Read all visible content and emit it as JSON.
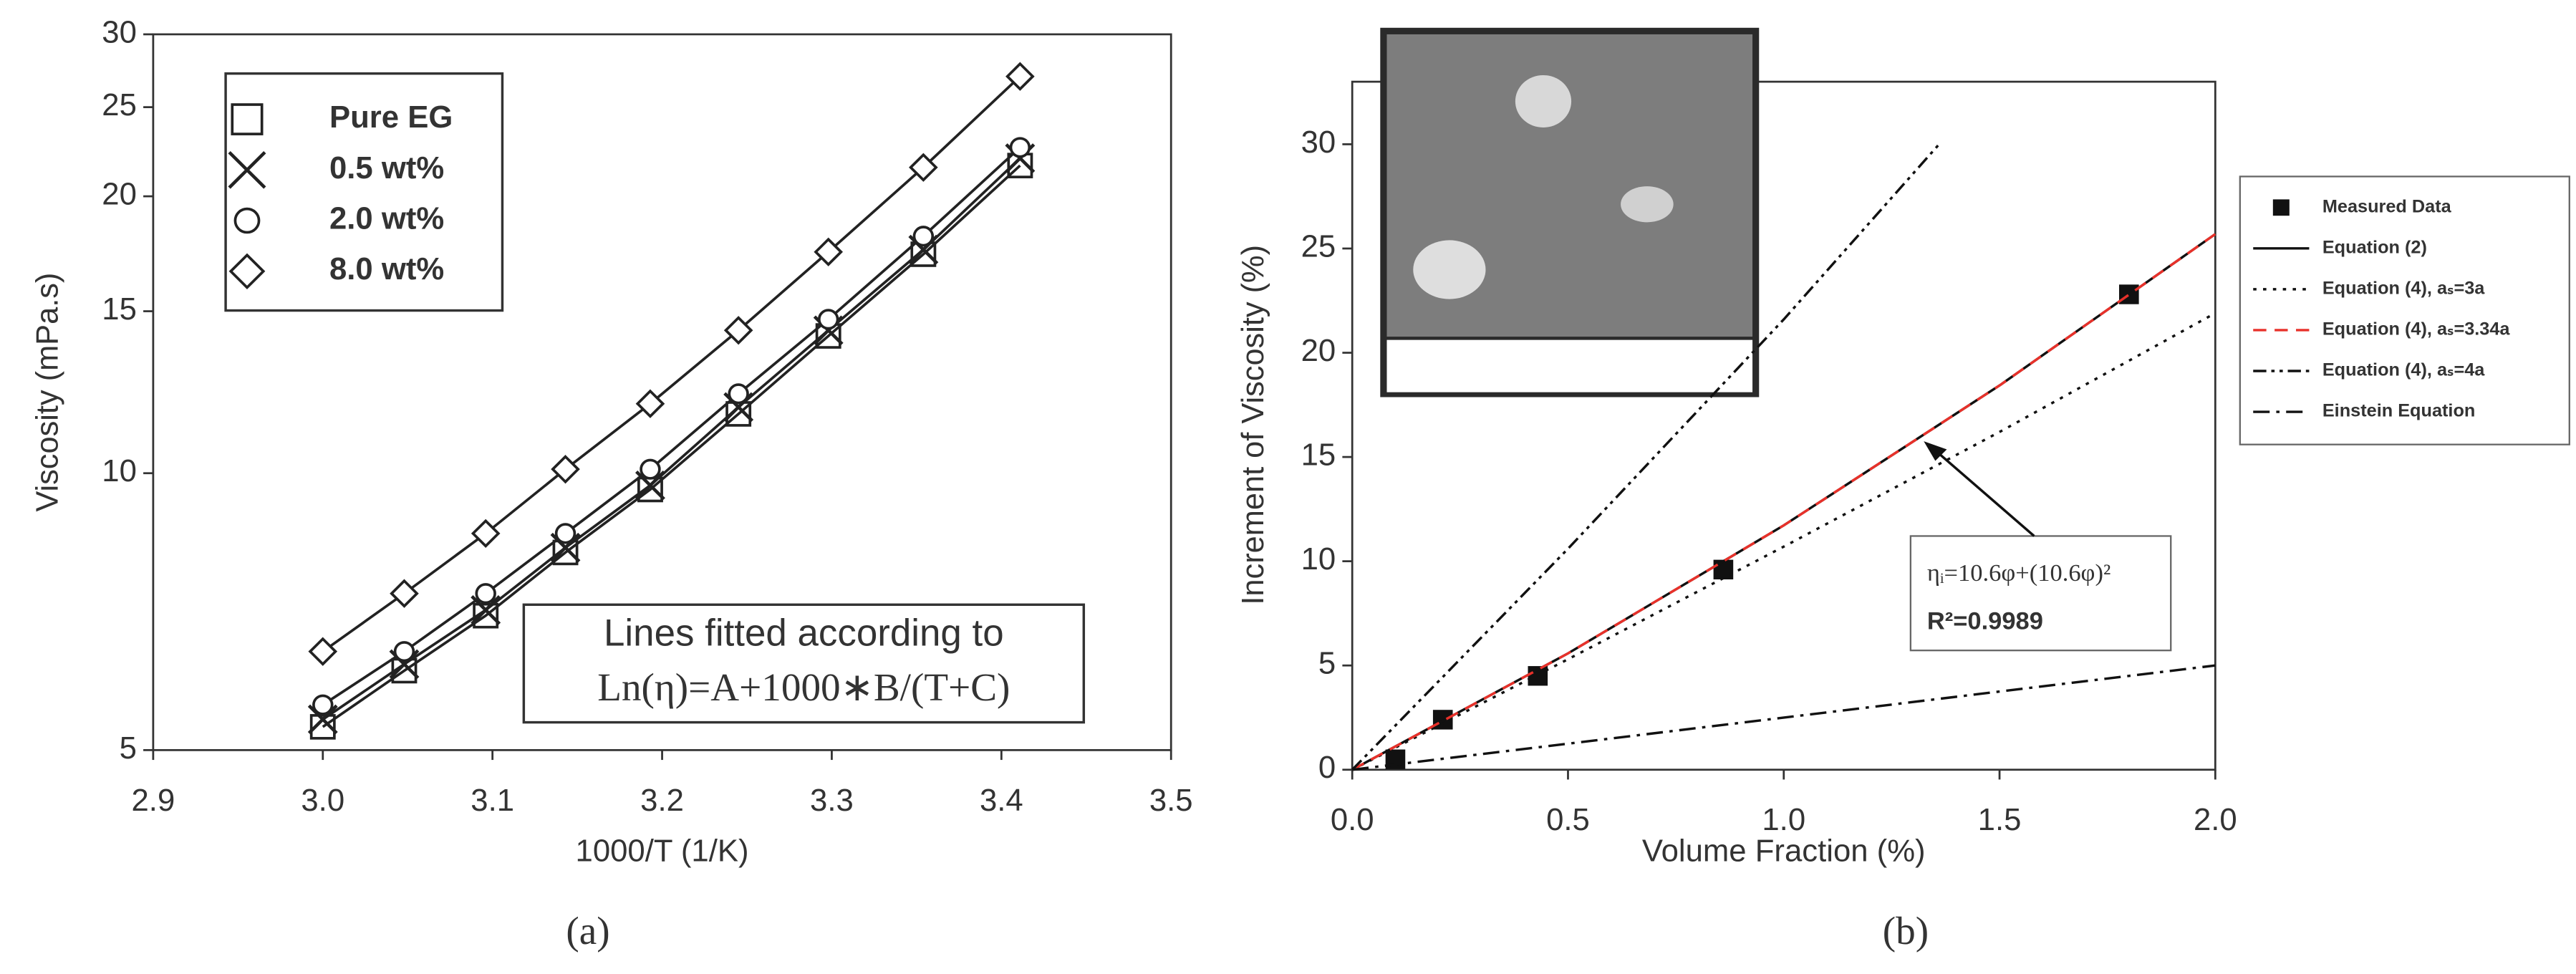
{
  "chart_data": [
    {
      "type": "line",
      "log_y": true,
      "legend": "upper left",
      "x_label": "1000/T (1/K)",
      "y_label": "Viscosity (mPa.s)",
      "caption": "(a)",
      "annotations": [
        "Lines fitted according to",
        "Ln(η)=A+1000∗B/(T+C)"
      ],
      "xlim": [
        2.9,
        3.5
      ],
      "xticks": [
        2.9,
        {
          "value": 3.0,
          "label": "3.0"
        },
        3.1,
        3.2,
        3.3,
        3.4,
        3.5
      ],
      "ylim": [
        5,
        30
      ],
      "yticks": [
        5,
        10,
        15,
        20,
        25,
        30
      ],
      "x": [
        3.0,
        3.048,
        3.096,
        3.143,
        3.193,
        3.245,
        3.298,
        3.354,
        3.411
      ],
      "series": [
        {
          "name": "Pure EG",
          "marker": "open-square",
          "color": "#222",
          "values": [
            5.3,
            6.1,
            7.0,
            8.2,
            9.6,
            11.6,
            14.1,
            17.3,
            21.6
          ]
        },
        {
          "name": "0.5 wt%",
          "marker": "cross",
          "color": "#222",
          "values": [
            5.4,
            6.2,
            7.1,
            8.3,
            9.7,
            11.8,
            14.3,
            17.5,
            22.0
          ]
        },
        {
          "name": "2.0 wt%",
          "marker": "open-circle",
          "color": "#222",
          "values": [
            5.6,
            6.4,
            7.4,
            8.6,
            10.1,
            12.2,
            14.7,
            18.1,
            22.6
          ]
        },
        {
          "name": "8.0 wt%",
          "marker": "open-diamond",
          "color": "#222",
          "values": [
            6.4,
            7.4,
            8.6,
            10.1,
            11.9,
            14.3,
            17.4,
            21.5,
            27.0
          ]
        }
      ]
    },
    {
      "type": "line",
      "log_y": false,
      "legend": "outside right",
      "x_label": "Volume Fraction (%)",
      "y_label": "Increment of Viscosity (%)",
      "caption": "(b)",
      "annotations": [
        "ηᵢ=10.6φ+(10.6φ)²",
        "R²=0.9989"
      ],
      "xlim": [
        0,
        2
      ],
      "xticks": [
        {
          "value": 0,
          "label": "0.0"
        },
        0.5,
        {
          "value": 1,
          "label": "1.0"
        },
        1.5,
        {
          "value": 2,
          "label": "2.0"
        }
      ],
      "ylim": [
        0,
        33
      ],
      "yticks": [
        0,
        5,
        10,
        15,
        20,
        25,
        30
      ],
      "series": [
        {
          "name": "Measured Data",
          "marker": "filled-square",
          "color": "#111",
          "x": [
            0.1,
            0.21,
            0.43,
            0.86,
            1.8
          ],
          "values": [
            0.5,
            2.4,
            4.5,
            9.6,
            22.8
          ]
        },
        {
          "name": "Equation (2)",
          "dash": "solid",
          "color": "#111",
          "x": [
            0,
            0.5,
            1,
            1.5,
            2
          ],
          "values": [
            0,
            5.58,
            11.72,
            18.43,
            25.69
          ]
        },
        {
          "name": "Equation (4), aₛ=3a",
          "dash": "dotted",
          "color": "#111",
          "x": [
            0,
            0.5,
            1,
            1.5,
            2
          ],
          "values": [
            0,
            5.3,
            10.7,
            16.2,
            21.9
          ]
        },
        {
          "name": "Equation (4), aₛ=3.34a",
          "dash": "dashed",
          "color": "#e8312a",
          "x": [
            0,
            0.5,
            1,
            1.5,
            2
          ],
          "values": [
            0,
            5.58,
            11.72,
            18.43,
            25.69
          ]
        },
        {
          "name": "Equation (4), aₛ=4a",
          "dash": "dash-dot-dot",
          "color": "#111",
          "x": [
            0,
            0.5,
            1,
            1.36
          ],
          "values": [
            0,
            10.6,
            21.6,
            30
          ]
        },
        {
          "name": "Einstein Equation",
          "dash": "dash-dot",
          "color": "#111",
          "x": [
            0,
            2
          ],
          "values": [
            0,
            5
          ]
        }
      ]
    }
  ]
}
